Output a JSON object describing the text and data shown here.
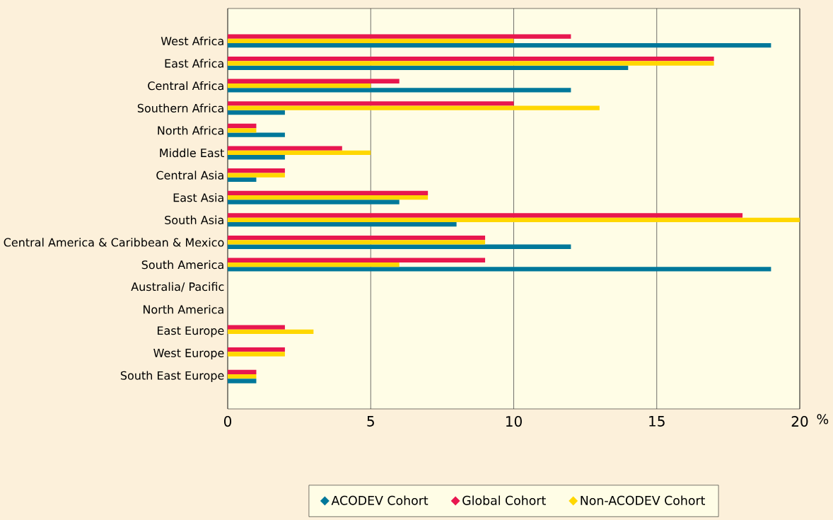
{
  "chart_data": {
    "type": "bar",
    "orientation": "horizontal",
    "xlabel": "%",
    "categories": [
      "West Africa",
      "East Africa",
      "Central Africa",
      "Southern Africa",
      "North Africa",
      "Middle East",
      "Central Asia",
      "East Asia",
      "South Asia",
      "Central America & Caribbean & Mexico",
      "South America",
      "Australia/ Pacific",
      "North America",
      "East Europe",
      "West Europe",
      "South East Europe"
    ],
    "series": [
      {
        "name": "ACODEV Cohort",
        "color": "#00789a",
        "values": [
          19,
          14,
          12,
          2,
          2,
          2,
          1,
          6,
          8,
          12,
          19,
          0,
          0,
          0,
          0,
          1
        ]
      },
      {
        "name": "Global Cohort",
        "color": "#e8174f",
        "values": [
          12,
          17,
          6,
          10,
          1,
          4,
          2,
          7,
          18,
          9,
          9,
          0,
          0,
          2,
          2,
          1
        ]
      },
      {
        "name": "Non-ACODEV Cohort",
        "color": "#ffd700",
        "values": [
          10,
          17,
          5,
          13,
          1,
          5,
          2,
          7,
          20,
          9,
          6,
          0,
          0,
          3,
          2,
          1
        ]
      }
    ],
    "xlim": [
      0,
      20
    ],
    "xticks": [
      0,
      5,
      10,
      15,
      20
    ],
    "grid": "x",
    "legend": "bottom"
  }
}
